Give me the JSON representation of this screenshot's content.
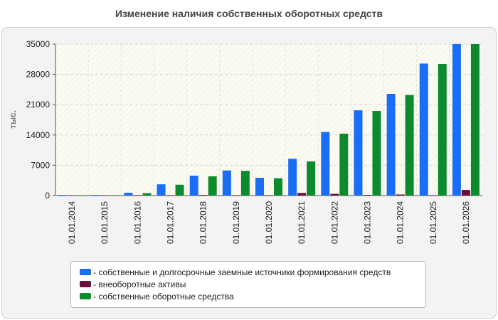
{
  "chart_data": {
    "type": "bar",
    "title": "Изменение наличия собственных оборотных средств",
    "ylabel": "тыс.",
    "xlabel": "",
    "ylim": [
      0,
      35000
    ],
    "yticks": [
      0,
      7000,
      14000,
      21000,
      28000,
      35000
    ],
    "grid": true,
    "legend_position": "bottom",
    "categories": [
      "01.01.2014",
      "01.01.2015",
      "01.01.2016",
      "01.01.2017",
      "01.01.2018",
      "01.01.2019",
      "01.01.2020",
      "01.01.2021",
      "01.01.2022",
      "01.01.2023",
      "01.01.2024",
      "01.01.2025",
      "01.01.2026"
    ],
    "series": [
      {
        "name": "- собственные и долгосрочные заемные источники формирования средств",
        "color": "#1a6ef5",
        "values": [
          150,
          150,
          650,
          2600,
          4600,
          5800,
          4100,
          8500,
          14700,
          19700,
          23500,
          30500,
          35000
        ]
      },
      {
        "name": "- внеоборотные активы",
        "color": "#6b0f3a",
        "values": [
          50,
          50,
          100,
          100,
          150,
          100,
          100,
          600,
          400,
          150,
          250,
          100,
          1300
        ]
      },
      {
        "name": "- собственные оборотные средства",
        "color": "#0d8a2e",
        "values": [
          100,
          100,
          550,
          2500,
          4450,
          5700,
          4000,
          7900,
          14300,
          19550,
          23250,
          30400,
          35000
        ]
      }
    ]
  }
}
